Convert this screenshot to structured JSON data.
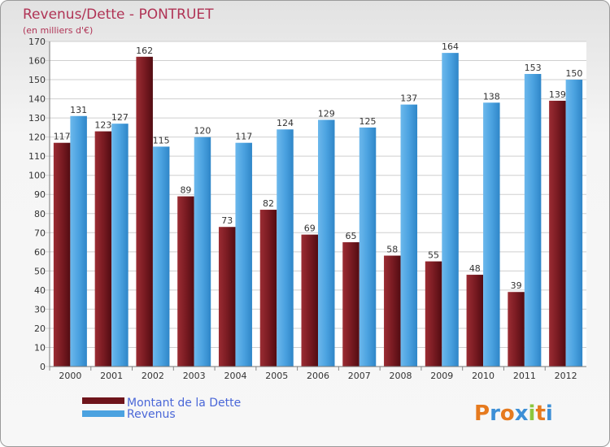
{
  "chart_data": {
    "type": "bar",
    "title": "Revenus/Dette - PONTRUET",
    "subtitle": "(en milliers d'€)",
    "categories": [
      "2000",
      "2001",
      "2002",
      "2003",
      "2004",
      "2005",
      "2006",
      "2007",
      "2008",
      "2009",
      "2010",
      "2011",
      "2012"
    ],
    "series": [
      {
        "name": "Montant de la Dette",
        "color": "#7a1b22",
        "values": [
          117,
          123,
          162,
          89,
          73,
          82,
          69,
          65,
          58,
          55,
          48,
          39,
          139
        ]
      },
      {
        "name": "Revenus",
        "color": "#4ba2e0",
        "values": [
          131,
          127,
          115,
          120,
          117,
          124,
          129,
          125,
          137,
          164,
          138,
          153,
          150
        ]
      }
    ],
    "ylim": [
      0,
      170
    ],
    "ytick_step": 10,
    "grid": true,
    "legend_position": "bottom-left"
  },
  "logo": {
    "text": "Proxiti"
  }
}
